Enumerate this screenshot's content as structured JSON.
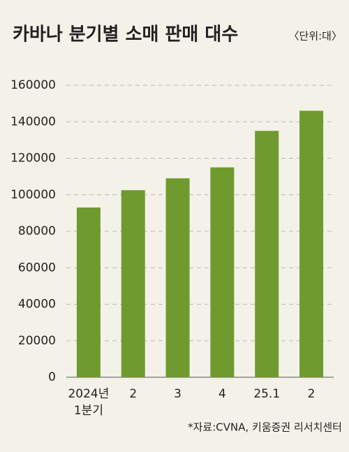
{
  "chart_data": {
    "type": "bar",
    "title": "카바나 분기별 소매 판매 대수",
    "subtitle": "〈단위:대〉",
    "categories": [
      "2024년\n1분기",
      "2",
      "3",
      "4",
      "25.1",
      "2"
    ],
    "values": [
      93000,
      102500,
      109000,
      115000,
      135000,
      146000
    ],
    "color": "#6f9a2e",
    "ylim": [
      0,
      160000
    ],
    "yticks": [
      0,
      20000,
      40000,
      60000,
      80000,
      100000,
      120000,
      140000,
      160000
    ],
    "grid": true,
    "source": "*자료:CVNA, 키움증권 리서치센터"
  }
}
